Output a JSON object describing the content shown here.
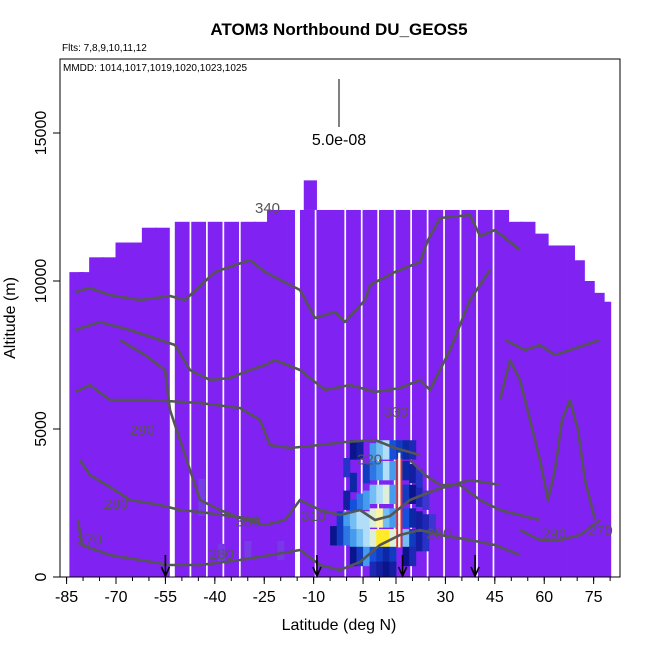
{
  "chart_data": {
    "type": "heatmap",
    "title": "ATOM3 Northbound DU_GEOS5",
    "flights_note": "Flts: 7,8,9,10,11,12",
    "dates_note": "MMDD: 1014,1017,1019,1020,1023,1025",
    "xlabel": "Latitude (deg N)",
    "ylabel": "Altitude (m)",
    "xlim": [
      -87,
      83
    ],
    "ylim": [
      0,
      17500
    ],
    "x_ticks": [
      -85,
      -70,
      -55,
      -40,
      -25,
      -10,
      5,
      15,
      30,
      45,
      60,
      75
    ],
    "y_ticks": [
      0,
      5000,
      10000,
      15000
    ],
    "scale_bar_label": "5.0e-08",
    "background_color": "#7f22f2",
    "contour_color": "#555555",
    "contour_labels": [
      {
        "text": "340",
        "lat": -24,
        "alt": 12300
      },
      {
        "text": "330",
        "lat": 15,
        "alt": 5400
      },
      {
        "text": "320",
        "lat": 7,
        "alt": 3800
      },
      {
        "text": "310",
        "lat": -10,
        "alt": 1900
      },
      {
        "text": "300",
        "lat": -30,
        "alt": 1700
      },
      {
        "text": "290",
        "lat": -62,
        "alt": 4800
      },
      {
        "text": "280",
        "lat": -70,
        "alt": 2300
      },
      {
        "text": "270",
        "lat": -78,
        "alt": 1100
      },
      {
        "text": "280",
        "lat": -38,
        "alt": 600
      },
      {
        "text": "280",
        "lat": 28,
        "alt": 1300
      },
      {
        "text": "290",
        "lat": 63,
        "alt": 1300
      },
      {
        "text": "270",
        "lat": 77,
        "alt": 1400
      }
    ],
    "profile_markers_lat": [
      -55,
      -9,
      17,
      39
    ],
    "data_columns": [
      {
        "lat": -82,
        "top": 10300
      },
      {
        "lat": -79,
        "top": 10300
      },
      {
        "lat": -76,
        "top": 10800
      },
      {
        "lat": -72,
        "top": 10800
      },
      {
        "lat": -68,
        "top": 11300
      },
      {
        "lat": -64,
        "top": 11300
      },
      {
        "lat": -60,
        "top": 11800
      },
      {
        "lat": -56,
        "top": 11800
      },
      {
        "lat": -50,
        "top": 12000
      },
      {
        "lat": -45,
        "top": 12000
      },
      {
        "lat": -40,
        "top": 12000
      },
      {
        "lat": -35,
        "top": 12000
      },
      {
        "lat": -30,
        "top": 12000
      },
      {
        "lat": -26,
        "top": 12000
      },
      {
        "lat": -22,
        "top": 12400
      },
      {
        "lat": -18,
        "top": 12400
      },
      {
        "lat": -12,
        "top": 12400
      },
      {
        "lat": -7,
        "top": 12400
      },
      {
        "lat": -3,
        "top": 12400
      },
      {
        "lat": 2,
        "top": 12400
      },
      {
        "lat": 7,
        "top": 12400
      },
      {
        "lat": 12,
        "top": 12400
      },
      {
        "lat": 17,
        "top": 12400
      },
      {
        "lat": 22,
        "top": 12400
      },
      {
        "lat": 27,
        "top": 12400
      },
      {
        "lat": 32,
        "top": 12400
      },
      {
        "lat": 37,
        "top": 12400
      },
      {
        "lat": 42,
        "top": 12400
      },
      {
        "lat": 47,
        "top": 12400
      },
      {
        "lat": 51,
        "top": 12000
      },
      {
        "lat": 55,
        "top": 12000
      },
      {
        "lat": 59,
        "top": 11600
      },
      {
        "lat": 63,
        "top": 11200
      },
      {
        "lat": 67,
        "top": 11200
      },
      {
        "lat": 70,
        "top": 10700
      },
      {
        "lat": 73,
        "top": 10000
      },
      {
        "lat": 76,
        "top": 9600
      },
      {
        "lat": 78,
        "top": 9300
      }
    ],
    "plume_cells": [
      {
        "lat": 0,
        "alt": 3700,
        "v": 0.3
      },
      {
        "lat": 2,
        "alt": 4300,
        "v": 0.45
      },
      {
        "lat": 4,
        "alt": 4300,
        "v": 0.4
      },
      {
        "lat": 2,
        "alt": 3200,
        "v": 0.5
      },
      {
        "lat": 4,
        "alt": 2500,
        "v": 0.65
      },
      {
        "lat": 6,
        "alt": 3500,
        "v": 0.55
      },
      {
        "lat": 8,
        "alt": 4200,
        "v": 0.7
      },
      {
        "lat": 10,
        "alt": 4300,
        "v": 0.75
      },
      {
        "lat": 12,
        "alt": 4300,
        "v": 0.8
      },
      {
        "lat": 14,
        "alt": 4300,
        "v": 0.6
      },
      {
        "lat": 16,
        "alt": 4300,
        "v": 0.55
      },
      {
        "lat": 18,
        "alt": 4300,
        "v": 0.5
      },
      {
        "lat": 20,
        "alt": 4300,
        "v": 0.35
      },
      {
        "lat": 8,
        "alt": 3600,
        "v": 0.65
      },
      {
        "lat": 10,
        "alt": 3600,
        "v": 0.7
      },
      {
        "lat": 12,
        "alt": 3600,
        "v": 0.8
      },
      {
        "lat": 14,
        "alt": 3600,
        "v": 0.7
      },
      {
        "lat": 16,
        "alt": 3600,
        "v": 0.6
      },
      {
        "lat": 18,
        "alt": 3600,
        "v": 0.5
      },
      {
        "lat": 20,
        "alt": 3500,
        "v": 0.4
      },
      {
        "lat": 22,
        "alt": 3300,
        "v": 0.3
      },
      {
        "lat": 0,
        "alt": 2600,
        "v": 0.4
      },
      {
        "lat": 2,
        "alt": 2300,
        "v": 0.6
      },
      {
        "lat": 6,
        "alt": 2600,
        "v": 0.7
      },
      {
        "lat": 8,
        "alt": 2800,
        "v": 0.75
      },
      {
        "lat": 10,
        "alt": 2800,
        "v": 0.8
      },
      {
        "lat": 12,
        "alt": 2800,
        "v": 0.85
      },
      {
        "lat": 14,
        "alt": 2800,
        "v": 0.7
      },
      {
        "lat": 18,
        "alt": 2800,
        "v": 0.55
      },
      {
        "lat": 20,
        "alt": 2800,
        "v": 0.45
      },
      {
        "lat": 22,
        "alt": 2700,
        "v": 0.35
      },
      {
        "lat": 24,
        "alt": 2600,
        "v": 0.25
      },
      {
        "lat": -2,
        "alt": 1900,
        "v": 0.55
      },
      {
        "lat": 0,
        "alt": 1900,
        "v": 0.7
      },
      {
        "lat": 2,
        "alt": 1900,
        "v": 0.75
      },
      {
        "lat": 4,
        "alt": 1900,
        "v": 0.8
      },
      {
        "lat": 6,
        "alt": 1900,
        "v": 0.8
      },
      {
        "lat": 8,
        "alt": 2000,
        "v": 0.85
      },
      {
        "lat": 10,
        "alt": 2000,
        "v": 0.9
      },
      {
        "lat": 12,
        "alt": 2000,
        "v": 0.75
      },
      {
        "lat": 14,
        "alt": 2000,
        "v": 0.7
      },
      {
        "lat": 18,
        "alt": 2000,
        "v": 0.6
      },
      {
        "lat": 20,
        "alt": 2000,
        "v": 0.5
      },
      {
        "lat": 22,
        "alt": 1900,
        "v": 0.4
      },
      {
        "lat": 24,
        "alt": 1800,
        "v": 0.35
      },
      {
        "lat": 26,
        "alt": 1800,
        "v": 0.25
      },
      {
        "lat": -4,
        "alt": 1400,
        "v": 0.45
      },
      {
        "lat": -2,
        "alt": 1400,
        "v": 0.55
      },
      {
        "lat": 0,
        "alt": 1400,
        "v": 0.65
      },
      {
        "lat": 2,
        "alt": 1300,
        "v": 0.7
      },
      {
        "lat": 4,
        "alt": 1300,
        "v": 0.75
      },
      {
        "lat": 6,
        "alt": 1300,
        "v": 0.8
      },
      {
        "lat": 8,
        "alt": 1300,
        "v": 0.85
      },
      {
        "lat": 10,
        "alt": 1300,
        "v": 1.0
      },
      {
        "lat": 12,
        "alt": 1300,
        "v": 1.0
      },
      {
        "lat": 14,
        "alt": 1300,
        "v": 0.85
      },
      {
        "lat": 18,
        "alt": 1300,
        "v": 0.75
      },
      {
        "lat": 20,
        "alt": 1300,
        "v": 0.55
      },
      {
        "lat": 22,
        "alt": 1200,
        "v": 0.4
      },
      {
        "lat": 24,
        "alt": 1200,
        "v": 0.3
      },
      {
        "lat": 2,
        "alt": 700,
        "v": 0.45
      },
      {
        "lat": 4,
        "alt": 700,
        "v": 0.55
      },
      {
        "lat": 6,
        "alt": 700,
        "v": 0.7
      },
      {
        "lat": 8,
        "alt": 700,
        "v": 0.6
      },
      {
        "lat": 10,
        "alt": 700,
        "v": 0.55
      },
      {
        "lat": 12,
        "alt": 700,
        "v": 0.5
      },
      {
        "lat": 14,
        "alt": 700,
        "v": 0.55
      },
      {
        "lat": 18,
        "alt": 700,
        "v": 0.45
      },
      {
        "lat": 20,
        "alt": 700,
        "v": 0.35
      },
      {
        "lat": 8,
        "alt": 200,
        "v": 0.35
      },
      {
        "lat": 10,
        "alt": 200,
        "v": 0.4
      },
      {
        "lat": 12,
        "alt": 200,
        "v": 0.45
      },
      {
        "lat": 14,
        "alt": 200,
        "v": 0.4
      },
      {
        "lat": -44,
        "alt": 3000,
        "v": 0.12
      },
      {
        "lat": -44,
        "alt": 2400,
        "v": 0.12
      },
      {
        "lat": -30,
        "alt": 900,
        "v": 0.12
      },
      {
        "lat": -20,
        "alt": 900,
        "v": 0.1
      },
      {
        "lat": -38,
        "alt": 800,
        "v": 0.1
      }
    ],
    "core_column": {
      "lat": 16,
      "from_alt": 1000,
      "to_alt": 4000
    }
  }
}
